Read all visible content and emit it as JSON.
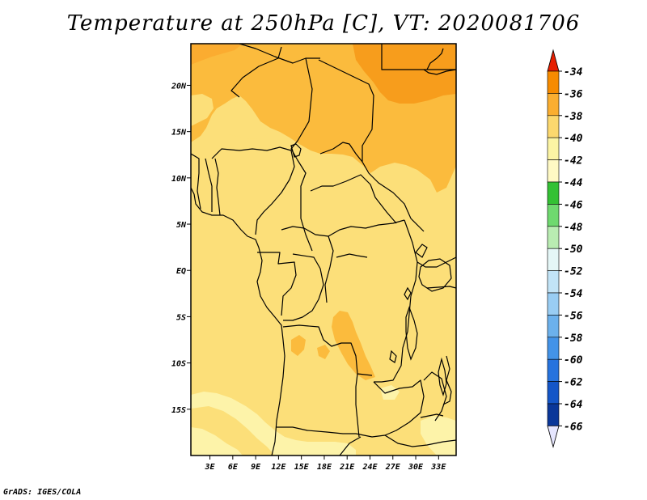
{
  "figure": {
    "title": "Temperature at 250hPa [C], VT: 2020081706",
    "credit": "GrADS: IGES/COLA"
  },
  "map": {
    "variable": "temperature",
    "level": "250hPa",
    "units": "C",
    "valid_time": "2020081706",
    "x_axis": {
      "unit": "longitude",
      "range_deg": [
        0.5,
        35.3
      ],
      "ticks": [
        3,
        6,
        9,
        12,
        15,
        18,
        21,
        24,
        27,
        30,
        33
      ],
      "tick_labels": [
        "3E",
        "6E",
        "9E",
        "12E",
        "15E",
        "18E",
        "21E",
        "24E",
        "27E",
        "30E",
        "33E"
      ]
    },
    "y_axis": {
      "unit": "latitude",
      "range_deg": [
        -20,
        24.5
      ],
      "ticks": [
        20,
        15,
        10,
        5,
        0,
        -5,
        -10,
        -15
      ],
      "tick_labels": [
        "20N",
        "15N",
        "10N",
        "5N",
        "EQ",
        "5S",
        "10S",
        "15S"
      ]
    },
    "dominant_band": "-42 to -40 over most of the domain; -40 to -38 over the Sahel/Sahara north of about 12N; -38 to -36 over Libya/Egypt north of about 19N; -44 to -42 patches over southern Angola and Zambia"
  },
  "colorbar": {
    "labels": [
      "-34",
      "-36",
      "-38",
      "-40",
      "-42",
      "-44",
      "-46",
      "-48",
      "-50",
      "-52",
      "-54",
      "-56",
      "-58",
      "-60",
      "-62",
      "-64",
      "-66"
    ],
    "colors": [
      "#e64b00",
      "#f78b00",
      "#fbae30",
      "#fcd86e",
      "#fcf4a4",
      "#fff9c4",
      "#34c134",
      "#6fd96f",
      "#b9ecb2",
      "#e5f7f7",
      "#c2e4f7",
      "#99cdf3",
      "#6cb1ec",
      "#4393e8",
      "#2773de",
      "#1456c8",
      "#0a3799",
      "#0a1673",
      "#e6e6ff"
    ],
    "top_arrow_color": "#e61e00",
    "bottom_arrow_color": "#e6e6ff"
  }
}
